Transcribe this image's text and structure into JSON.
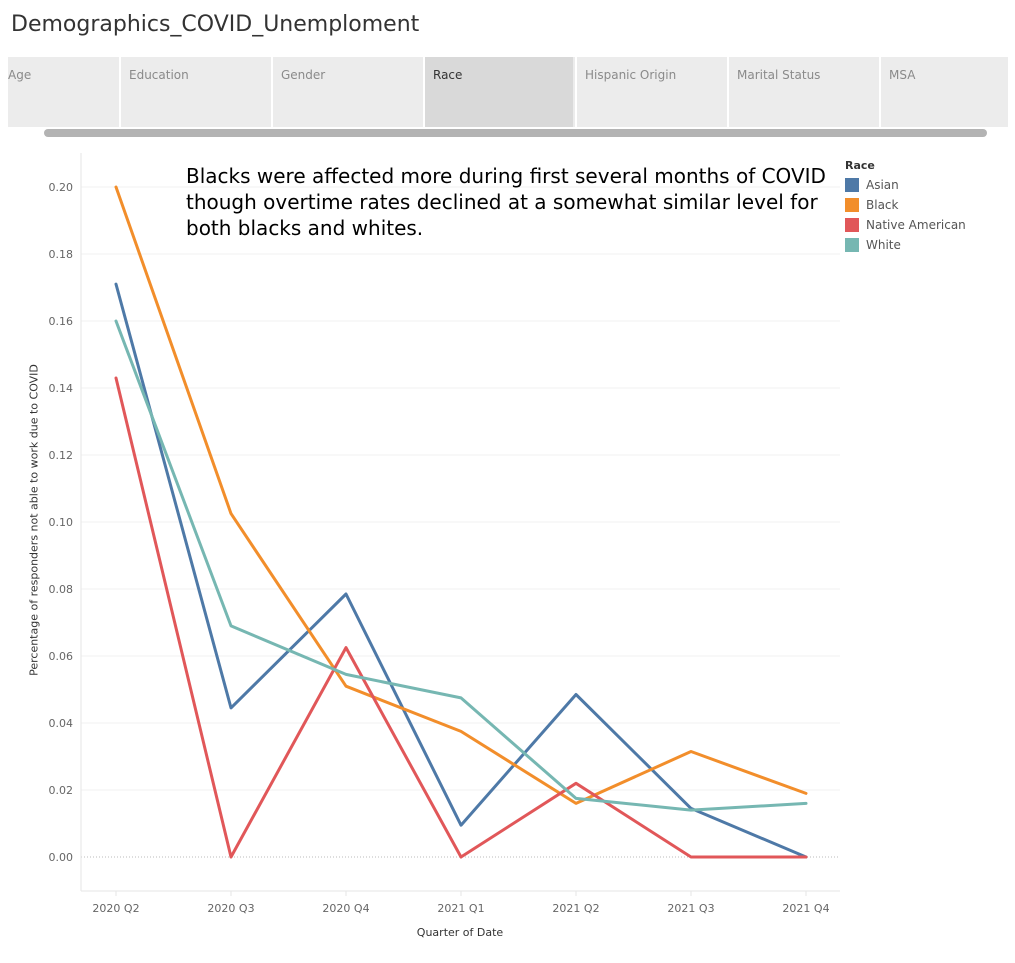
{
  "title": "Demographics_COVID_Unemploment",
  "tabs": [
    {
      "label": "Age",
      "active": false
    },
    {
      "label": "Education",
      "active": false
    },
    {
      "label": "Gender",
      "active": false
    },
    {
      "label": "Race",
      "active": true
    },
    {
      "label": "Hispanic Origin",
      "active": false
    },
    {
      "label": "Marital Status",
      "active": false
    },
    {
      "label": "MSA",
      "active": false
    }
  ],
  "annotation": "Blacks were affected more during first several months of COVID though overtime rates declined at a somewhat similar level for both blacks and whites.",
  "legend": {
    "title": "Race",
    "items": [
      {
        "label": "Asian",
        "color": "#4e79a7"
      },
      {
        "label": "Black",
        "color": "#f28e2b"
      },
      {
        "label": "Native American",
        "color": "#e15759"
      },
      {
        "label": "White",
        "color": "#76b7b2"
      }
    ]
  },
  "chart_data": {
    "type": "line",
    "xlabel": "Quarter of Date",
    "ylabel": "Percentage of responders not able to work due to COVID",
    "categories": [
      "2020 Q2",
      "2020 Q3",
      "2020 Q4",
      "2021 Q1",
      "2021 Q2",
      "2021 Q3",
      "2021 Q4"
    ],
    "ylim": [
      0,
      0.2
    ],
    "yticks": [
      "0.00",
      "0.02",
      "0.04",
      "0.06",
      "0.08",
      "0.10",
      "0.12",
      "0.14",
      "0.16",
      "0.18",
      "0.20"
    ],
    "grid": true,
    "legend_position": "top-right",
    "series": [
      {
        "name": "Asian",
        "color": "#4e79a7",
        "values": [
          0.171,
          0.0445,
          0.0785,
          0.0095,
          0.0485,
          0.0145,
          0.0
        ]
      },
      {
        "name": "Black",
        "color": "#f28e2b",
        "values": [
          0.2,
          0.1025,
          0.051,
          0.0375,
          0.016,
          0.0315,
          0.019
        ]
      },
      {
        "name": "Native American",
        "color": "#e15759",
        "values": [
          0.143,
          0.0,
          0.0625,
          0.0,
          0.022,
          0.0,
          0.0
        ]
      },
      {
        "name": "White",
        "color": "#76b7b2",
        "values": [
          0.16,
          0.069,
          0.0545,
          0.0475,
          0.0175,
          0.014,
          0.016
        ]
      }
    ]
  }
}
